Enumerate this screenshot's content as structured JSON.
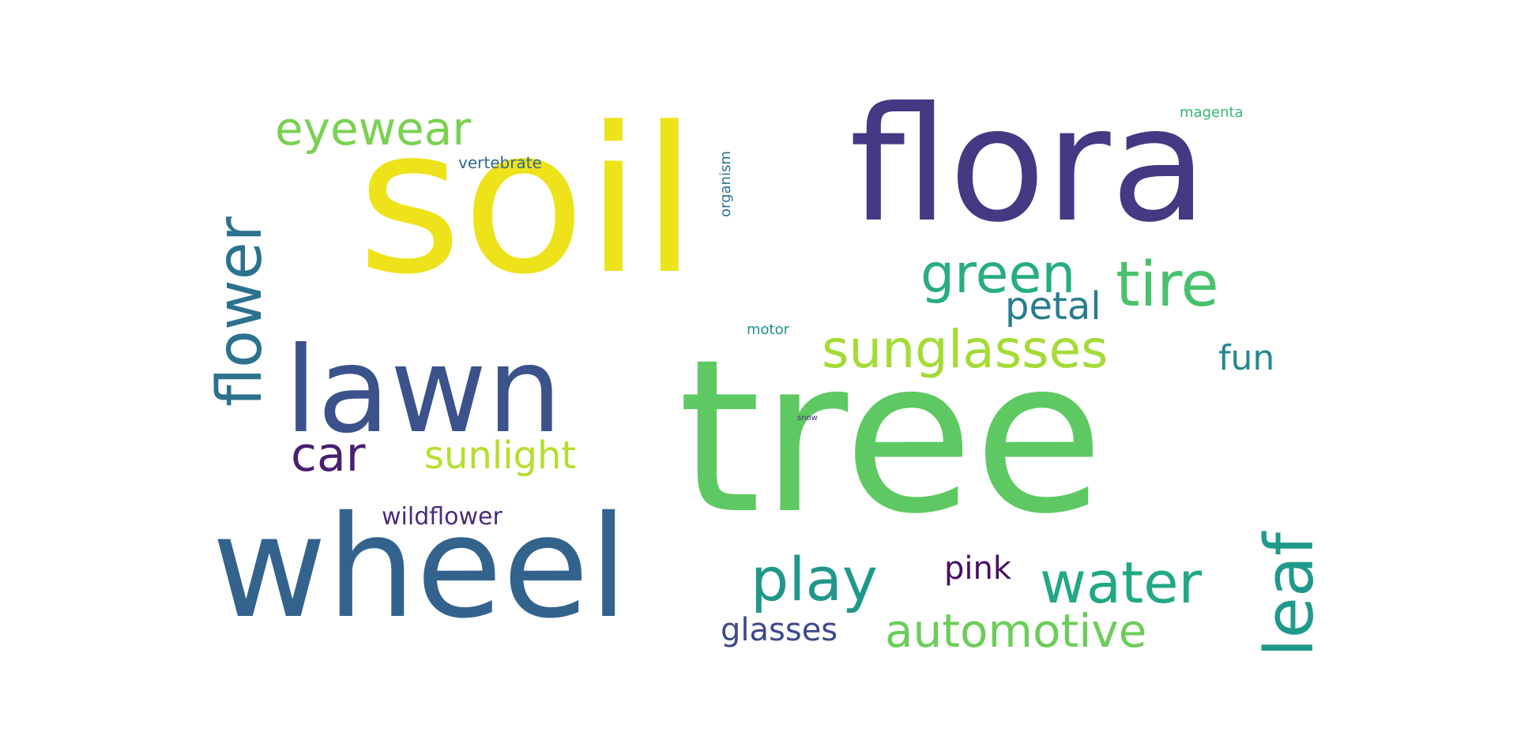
{
  "words": [
    {
      "key": "soil",
      "text": "soil",
      "color": "#eee31b"
    },
    {
      "key": "flora",
      "text": "flora",
      "color": "#443983"
    },
    {
      "key": "tree",
      "text": "tree",
      "color": "#5ec962"
    },
    {
      "key": "wheel",
      "text": "wheel",
      "color": "#33638d"
    },
    {
      "key": "lawn",
      "text": "lawn",
      "color": "#3b528b"
    },
    {
      "key": "flower",
      "text": "flower",
      "color": "#2c728e"
    },
    {
      "key": "eyewear",
      "text": "eyewear",
      "color": "#7ad151"
    },
    {
      "key": "vertebrate",
      "text": "vertebrate",
      "color": "#31688e"
    },
    {
      "key": "organism",
      "text": "organism",
      "color": "#2c728e"
    },
    {
      "key": "magenta",
      "text": "magenta",
      "color": "#35b779"
    },
    {
      "key": "green",
      "text": "green",
      "color": "#27ad81"
    },
    {
      "key": "tire",
      "text": "tire",
      "color": "#4ac16d"
    },
    {
      "key": "petal",
      "text": "petal",
      "color": "#287c8e"
    },
    {
      "key": "sunglasses",
      "text": "sunglasses",
      "color": "#a5db36"
    },
    {
      "key": "motor",
      "text": "motor",
      "color": "#21918c"
    },
    {
      "key": "fun",
      "text": "fun",
      "color": "#23898e"
    },
    {
      "key": "snow",
      "text": "snow",
      "color": "#482576"
    },
    {
      "key": "car",
      "text": "car",
      "color": "#481f70"
    },
    {
      "key": "sunlight",
      "text": "sunlight",
      "color": "#b5de2b"
    },
    {
      "key": "leaf",
      "text": "leaf",
      "color": "#1f9a8a"
    },
    {
      "key": "wildflower",
      "text": "wildflower",
      "color": "#472d7b"
    },
    {
      "key": "pink",
      "text": "pink",
      "color": "#471063"
    },
    {
      "key": "play",
      "text": "play",
      "color": "#1f988b"
    },
    {
      "key": "water",
      "text": "water",
      "color": "#22a884"
    },
    {
      "key": "automotive",
      "text": "automotive",
      "color": "#6ccd5a"
    },
    {
      "key": "glasses",
      "text": "glasses",
      "color": "#3e4989"
    }
  ]
}
